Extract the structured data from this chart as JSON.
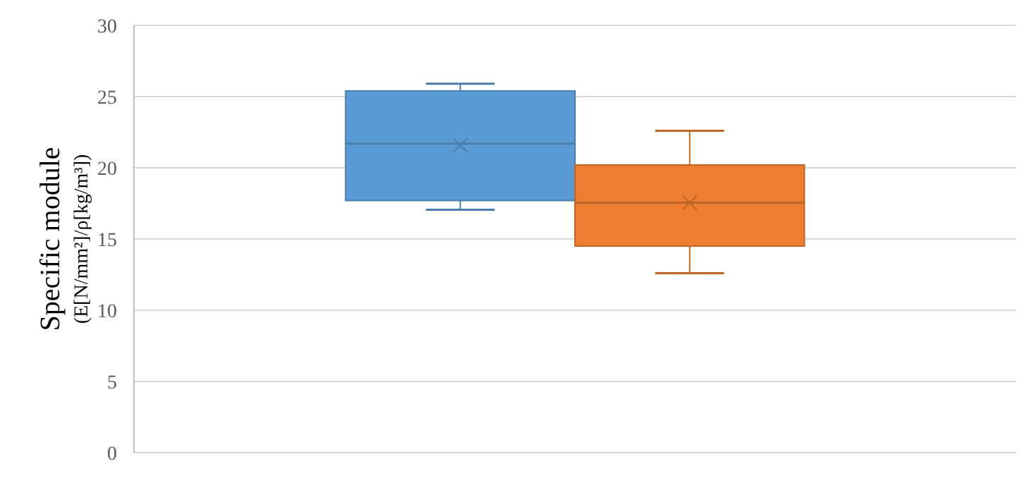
{
  "chart_data": {
    "type": "box",
    "ylabel": "Specific module\n(E[N/mm²]/ρ[kg/m³])",
    "categories": [
      null
    ],
    "ylim": [
      0,
      30
    ],
    "yticks": [
      0,
      5,
      10,
      15,
      20,
      25,
      30
    ],
    "grid": "y",
    "marker": "cross",
    "series": [
      {
        "color": "#5b9bd5",
        "boxes": [
          {
            "low": 17.05,
            "q1": 17.7,
            "median": 21.7,
            "q3": 25.4,
            "high": 25.9,
            "mean": 21.6
          }
        ]
      },
      {
        "color": "#ed7d31",
        "boxes": [
          {
            "low": 12.6,
            "q1": 14.5,
            "median": 17.55,
            "q3": 20.2,
            "high": 22.6,
            "mean": 17.55
          }
        ]
      }
    ]
  }
}
